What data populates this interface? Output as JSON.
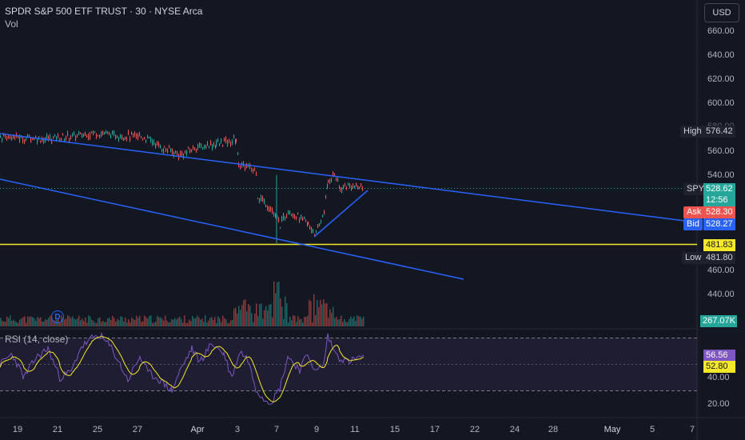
{
  "header": {
    "title": "SPDR S&P 500 ETF TRUST · 30 · NYSE Arca",
    "subtitle": "Vol"
  },
  "currency_button": "USD",
  "price_axis": {
    "ticks": [
      "660.00",
      "640.00",
      "620.00",
      "600.00",
      "580.00",
      "560.00",
      "540.00",
      "460.00",
      "440.00"
    ]
  },
  "rsi_axis": {
    "ticks": [
      "40.00",
      "20.00"
    ]
  },
  "time_axis": {
    "ticks": [
      "19",
      "21",
      "25",
      "27",
      "Apr",
      "3",
      "7",
      "9",
      "11",
      "15",
      "17",
      "22",
      "24",
      "28",
      "May",
      "5",
      "7"
    ]
  },
  "price_labels": {
    "high_label": "High",
    "high_value": "576.42",
    "symbol": "SPY",
    "last_price": "528.62",
    "countdown": "12:56",
    "ask_label": "Ask",
    "ask_value": "528.30",
    "bid_label": "Bid",
    "bid_value": "528.27",
    "hline_value": "481.83",
    "low_label": "Low",
    "low_value": "481.80",
    "volume_value": "267.07K"
  },
  "rsi": {
    "label": "RSI (14, close)",
    "value": "56.56",
    "ma_value": "52.80"
  },
  "dividend_marker": "D",
  "colors": {
    "background": "#131722",
    "up": "#26a69a",
    "down": "#ef5350",
    "trendline": "#2962ff",
    "hline": "#f5e82a",
    "rsi_line": "#7e57c2",
    "rsi_ma": "#f5e82a",
    "text": "#b2b5be"
  },
  "chart_data": {
    "type": "line",
    "title": "SPDR S&P 500 ETF TRUST · 30 · NYSE Arca",
    "x": [
      "19",
      "21",
      "25",
      "27",
      "Apr",
      "3",
      "7",
      "9",
      "11"
    ],
    "series": [
      {
        "name": "SPY",
        "values": [
          569,
          570,
          573,
          566,
          560,
          542,
          505,
          495,
          528
        ]
      }
    ],
    "ylim": [
      420,
      670
    ],
    "rsi_period": 14,
    "horizontal_line": 481.83
  }
}
